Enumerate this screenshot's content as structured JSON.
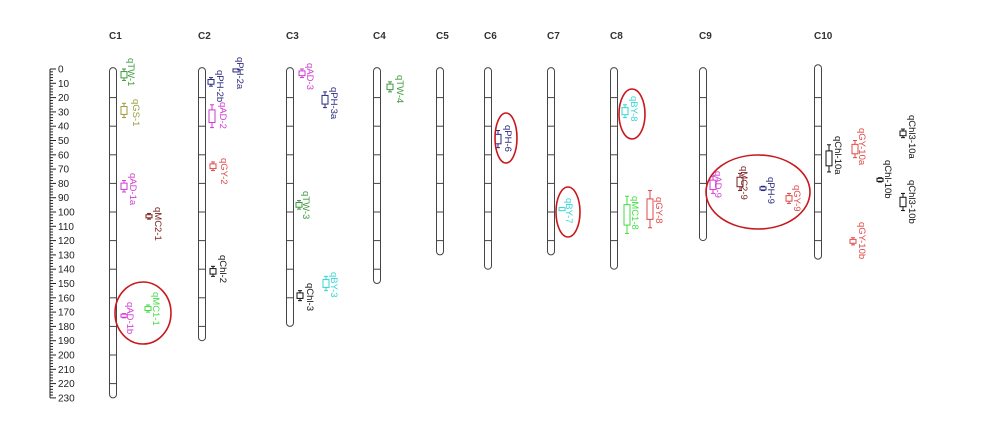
{
  "axis": {
    "min": 0,
    "max": 230,
    "major_step": 10,
    "minor_step": 2,
    "labels": [
      "0",
      "10",
      "20",
      "30",
      "40",
      "50",
      "60",
      "70",
      "80",
      "90",
      "100",
      "110",
      "120",
      "130",
      "140",
      "150",
      "160",
      "170",
      "180",
      "190",
      "200",
      "210",
      "220",
      "230"
    ]
  },
  "chromosomes": [
    {
      "name": "C1",
      "length": 230
    },
    {
      "name": "C2",
      "length": 190
    },
    {
      "name": "C3",
      "length": 180
    },
    {
      "name": "C4",
      "length": 150
    },
    {
      "name": "C5",
      "length": 130
    },
    {
      "name": "C6",
      "length": 140
    },
    {
      "name": "C7",
      "length": 130
    },
    {
      "name": "C8",
      "length": 140
    },
    {
      "name": "C9",
      "length": 120
    },
    {
      "name": "C10",
      "length": 133
    }
  ],
  "colors": {
    "TW": "#3c9a3c",
    "GS": "#a09a3a",
    "AD": "#d23ad2",
    "MC2": "#7a2020",
    "MC1": "#44dd44",
    "PH": "#2a2a80",
    "GY": "#e04848",
    "Chl": "#111111",
    "BY": "#33d6d6",
    "highlight": "#c8181e"
  },
  "qtls": [
    {
      "name": "qTW-1",
      "chr": "C1",
      "trait": "TW",
      "interval": [
        0,
        8
      ]
    },
    {
      "name": "qGS-1",
      "chr": "C1",
      "trait": "GS",
      "interval": [
        24,
        34
      ]
    },
    {
      "name": "qAD-1a",
      "chr": "C1",
      "trait": "AD",
      "interval": [
        78,
        86
      ]
    },
    {
      "name": "qMC2-1",
      "chr": "C1",
      "trait": "MC2",
      "interval": [
        101,
        105
      ]
    },
    {
      "name": "qMC1-1",
      "chr": "C1",
      "trait": "MC1",
      "interval": [
        165,
        170
      ],
      "highlighted": true
    },
    {
      "name": "qAD-1b",
      "chr": "C1",
      "trait": "AD",
      "interval": [
        171,
        174
      ],
      "highlighted": true
    },
    {
      "name": "qPH-2a",
      "chr": "C2",
      "trait": "PH",
      "interval": [
        0,
        2
      ]
    },
    {
      "name": "qPH-2b",
      "chr": "C2",
      "trait": "PH",
      "interval": [
        6,
        12
      ]
    },
    {
      "name": "qAD-2",
      "chr": "C2",
      "trait": "AD",
      "interval": [
        25,
        41
      ]
    },
    {
      "name": "qGY-2",
      "chr": "C2",
      "trait": "GY",
      "interval": [
        65,
        71
      ]
    },
    {
      "name": "qChl-2",
      "chr": "C2",
      "trait": "Chl",
      "interval": [
        138,
        145
      ]
    },
    {
      "name": "qAD-3",
      "chr": "C3",
      "trait": "AD",
      "interval": [
        0,
        6
      ]
    },
    {
      "name": "qPH-3a",
      "chr": "C3",
      "trait": "PH",
      "interval": [
        16,
        27
      ]
    },
    {
      "name": "qTW-3",
      "chr": "C3",
      "trait": "TW",
      "interval": [
        92,
        98
      ]
    },
    {
      "name": "qBY-3",
      "chr": "C3",
      "trait": "BY",
      "interval": [
        145,
        155
      ]
    },
    {
      "name": "qChl-3",
      "chr": "C3",
      "trait": "Chl",
      "interval": [
        155,
        162
      ]
    },
    {
      "name": "qTW-4",
      "chr": "C4",
      "trait": "TW",
      "interval": [
        9,
        16
      ]
    },
    {
      "name": "qPH-6",
      "chr": "C6",
      "trait": "PH",
      "interval": [
        43,
        55
      ],
      "highlighted": true
    },
    {
      "name": "qBY-7",
      "chr": "C7",
      "trait": "BY",
      "interval": [
        97,
        99
      ],
      "highlighted": true
    },
    {
      "name": "qBY-8",
      "chr": "C8",
      "trait": "BY",
      "interval": [
        25,
        34
      ],
      "highlighted": true
    },
    {
      "name": "qMC1-8",
      "chr": "C8",
      "trait": "MC1",
      "interval": [
        89,
        115
      ]
    },
    {
      "name": "qGY-8",
      "chr": "C8",
      "trait": "GY",
      "interval": [
        85,
        111
      ]
    },
    {
      "name": "qAD-9",
      "chr": "C9",
      "trait": "AD",
      "interval": [
        75,
        87
      ],
      "highlighted": true
    },
    {
      "name": "qMC2-9",
      "chr": "C9",
      "trait": "MC2",
      "interval": [
        73,
        85
      ],
      "highlighted": true
    },
    {
      "name": "qPH-9",
      "chr": "C9",
      "trait": "PH",
      "interval": [
        82,
        85
      ],
      "highlighted": true
    },
    {
      "name": "qGY-9",
      "chr": "C9",
      "trait": "GY",
      "interval": [
        87,
        94
      ],
      "highlighted": true
    },
    {
      "name": "qChl-10a",
      "chr": "C10",
      "trait": "Chl",
      "interval": [
        53,
        72
      ]
    },
    {
      "name": "qGY-10a",
      "chr": "C10",
      "trait": "GY",
      "interval": [
        50,
        62
      ]
    },
    {
      "name": "qChl-10b",
      "chr": "C10",
      "trait": "Chl",
      "interval": [
        76,
        79
      ]
    },
    {
      "name": "qChl3-10a",
      "chr": "C10",
      "trait": "Chl",
      "interval": [
        42,
        48
      ]
    },
    {
      "name": "qChl3-10b",
      "chr": "C10",
      "trait": "Chl",
      "interval": [
        87,
        99
      ]
    },
    {
      "name": "qGY-10b",
      "chr": "C10",
      "trait": "GY",
      "interval": [
        118,
        123
      ]
    }
  ]
}
